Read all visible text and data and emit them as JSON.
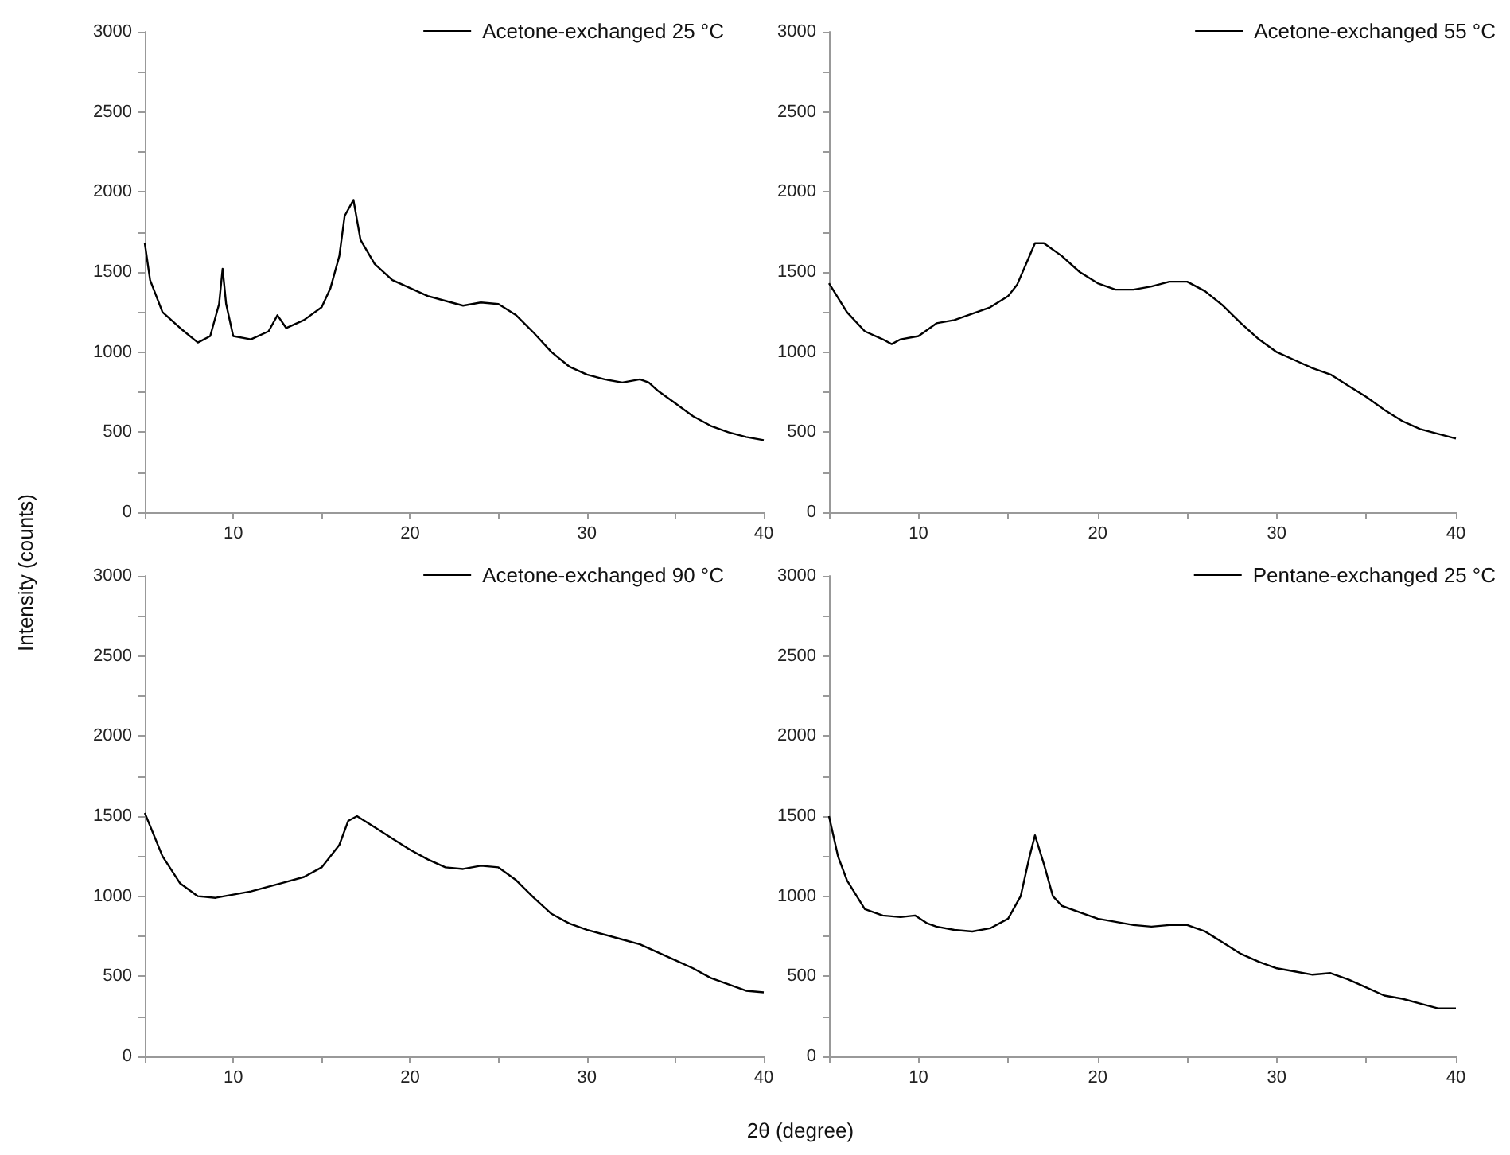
{
  "chart_data": [
    {
      "type": "line",
      "ylabel": "Intensity (counts)",
      "legend": "top right",
      "grid": false,
      "xlim": [
        5,
        40
      ],
      "ylim": [
        0,
        3000
      ],
      "xticks": [
        {
          "value": 5,
          "label": null
        },
        10,
        {
          "value": 15,
          "label": null
        },
        20,
        {
          "value": 25,
          "label": null
        },
        30,
        {
          "value": 35,
          "label": null
        },
        40
      ],
      "yticks": [
        0,
        {
          "value": 250,
          "label": null
        },
        500,
        {
          "value": 750,
          "label": null
        },
        1000,
        {
          "value": 1250,
          "label": null
        },
        1500,
        {
          "value": 1750,
          "label": null
        },
        2000,
        {
          "value": 2250,
          "label": null
        },
        2500,
        {
          "value": 2750,
          "label": null
        },
        3000
      ],
      "x": [
        5,
        5.3,
        6,
        7,
        8,
        8.7,
        9.2,
        9.4,
        9.6,
        10,
        11,
        12,
        12.5,
        13,
        14,
        15,
        15.5,
        16,
        16.3,
        16.8,
        17.2,
        18,
        19,
        20,
        21,
        22,
        23,
        24,
        25,
        26,
        27,
        28,
        29,
        30,
        31,
        32,
        33,
        33.5,
        34,
        35,
        36,
        37,
        38,
        39,
        40
      ],
      "series": [
        {
          "name": "Acetone-exchanged 25 °C",
          "color": "#000000",
          "values": [
            1680,
            1450,
            1250,
            1150,
            1060,
            1100,
            1300,
            1520,
            1300,
            1100,
            1080,
            1130,
            1230,
            1150,
            1200,
            1280,
            1400,
            1600,
            1850,
            1950,
            1700,
            1550,
            1450,
            1400,
            1350,
            1320,
            1290,
            1310,
            1300,
            1230,
            1120,
            1000,
            910,
            860,
            830,
            810,
            830,
            810,
            760,
            680,
            600,
            540,
            500,
            470,
            450
          ]
        }
      ]
    },
    {
      "type": "line",
      "legend": "top right",
      "grid": false,
      "xlim": [
        5,
        40
      ],
      "ylim": [
        0,
        3000
      ],
      "xticks": [
        {
          "value": 5,
          "label": null
        },
        10,
        {
          "value": 15,
          "label": null
        },
        20,
        {
          "value": 25,
          "label": null
        },
        30,
        {
          "value": 35,
          "label": null
        },
        40
      ],
      "yticks": [
        0,
        {
          "value": 250,
          "label": null
        },
        500,
        {
          "value": 750,
          "label": null
        },
        1000,
        {
          "value": 1250,
          "label": null
        },
        1500,
        {
          "value": 1750,
          "label": null
        },
        2000,
        {
          "value": 2250,
          "label": null
        },
        2500,
        {
          "value": 2750,
          "label": null
        },
        3000
      ],
      "x": [
        5,
        6,
        7,
        8,
        8.5,
        9,
        10,
        11,
        12,
        13,
        14,
        15,
        15.5,
        16,
        16.5,
        17,
        18,
        19,
        20,
        21,
        22,
        23,
        24,
        25,
        26,
        27,
        28,
        29,
        30,
        31,
        32,
        33,
        34,
        35,
        36,
        37,
        38,
        39,
        40
      ],
      "series": [
        {
          "name": "Acetone-exchanged 55 °C",
          "color": "#000000",
          "values": [
            1430,
            1250,
            1130,
            1080,
            1050,
            1080,
            1100,
            1180,
            1200,
            1240,
            1280,
            1350,
            1420,
            1550,
            1680,
            1680,
            1600,
            1500,
            1430,
            1390,
            1390,
            1410,
            1440,
            1440,
            1380,
            1290,
            1180,
            1080,
            1000,
            950,
            900,
            860,
            790,
            720,
            640,
            570,
            520,
            490,
            460
          ]
        }
      ]
    },
    {
      "type": "line",
      "xlabel": "2θ (degree)",
      "legend": "top right",
      "grid": false,
      "xlim": [
        5,
        40
      ],
      "ylim": [
        0,
        3000
      ],
      "xticks": [
        {
          "value": 5,
          "label": null
        },
        10,
        {
          "value": 15,
          "label": null
        },
        20,
        {
          "value": 25,
          "label": null
        },
        30,
        {
          "value": 35,
          "label": null
        },
        40
      ],
      "yticks": [
        0,
        {
          "value": 250,
          "label": null
        },
        500,
        {
          "value": 750,
          "label": null
        },
        1000,
        {
          "value": 1250,
          "label": null
        },
        1500,
        {
          "value": 1750,
          "label": null
        },
        2000,
        {
          "value": 2250,
          "label": null
        },
        2500,
        {
          "value": 2750,
          "label": null
        },
        3000
      ],
      "x": [
        5,
        6,
        7,
        8,
        9,
        10,
        11,
        12,
        13,
        14,
        15,
        16,
        16.5,
        17,
        18,
        19,
        20,
        21,
        22,
        23,
        24,
        25,
        26,
        27,
        28,
        29,
        30,
        31,
        32,
        33,
        34,
        35,
        36,
        37,
        38,
        39,
        40
      ],
      "series": [
        {
          "name": "Acetone-exchanged 90 °C",
          "color": "#000000",
          "values": [
            1520,
            1250,
            1080,
            1000,
            990,
            1010,
            1030,
            1060,
            1090,
            1120,
            1180,
            1320,
            1470,
            1500,
            1430,
            1360,
            1290,
            1230,
            1180,
            1170,
            1190,
            1180,
            1100,
            990,
            890,
            830,
            790,
            760,
            730,
            700,
            650,
            600,
            550,
            490,
            450,
            410,
            400
          ]
        }
      ]
    },
    {
      "type": "line",
      "legend": "top right",
      "grid": false,
      "xlim": [
        5,
        40
      ],
      "ylim": [
        0,
        3000
      ],
      "xticks": [
        {
          "value": 5,
          "label": null
        },
        10,
        {
          "value": 15,
          "label": null
        },
        20,
        {
          "value": 25,
          "label": null
        },
        30,
        {
          "value": 35,
          "label": null
        },
        40
      ],
      "yticks": [
        0,
        {
          "value": 250,
          "label": null
        },
        500,
        {
          "value": 750,
          "label": null
        },
        1000,
        {
          "value": 1250,
          "label": null
        },
        1500,
        {
          "value": 1750,
          "label": null
        },
        2000,
        {
          "value": 2250,
          "label": null
        },
        2500,
        {
          "value": 2750,
          "label": null
        },
        3000
      ],
      "x": [
        5,
        5.5,
        6,
        7,
        8,
        9,
        9.8,
        10.5,
        11,
        12,
        13,
        14,
        15,
        15.7,
        16.2,
        16.5,
        17,
        17.5,
        18,
        19,
        20,
        21,
        22,
        23,
        24,
        25,
        26,
        27,
        28,
        29,
        30,
        31,
        32,
        33,
        34,
        35,
        36,
        37,
        38,
        39,
        40
      ],
      "series": [
        {
          "name": "Pentane-exchanged 25 °C",
          "color": "#000000",
          "values": [
            1500,
            1250,
            1100,
            920,
            880,
            870,
            880,
            830,
            810,
            790,
            780,
            800,
            860,
            1000,
            1250,
            1380,
            1200,
            1000,
            940,
            900,
            860,
            840,
            820,
            810,
            820,
            820,
            780,
            710,
            640,
            590,
            550,
            530,
            510,
            520,
            480,
            430,
            380,
            360,
            330,
            300,
            300
          ]
        }
      ]
    }
  ]
}
